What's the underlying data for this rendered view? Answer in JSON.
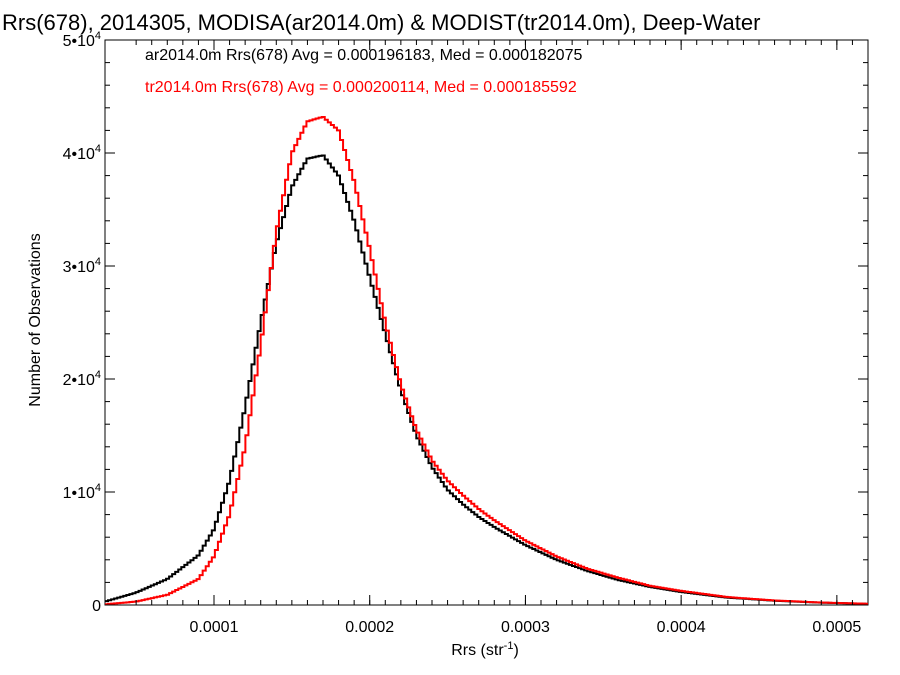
{
  "chart_data": {
    "type": "line",
    "title": "Rrs(678), 2014305, MODISA(ar2014.0m) & MODIST(tr2014.0m), Deep-Water",
    "xlabel": "Rrs (str",
    "xlabel_sup": "-1",
    "xlabel_end": ")",
    "ylabel": "Number of Observations",
    "xlim": [
      3e-05,
      0.00052
    ],
    "ylim": [
      0,
      50000
    ],
    "x_ticks": [
      {
        "value": 0.0001,
        "label": "0.0001"
      },
      {
        "value": 0.0002,
        "label": "0.0002"
      },
      {
        "value": 0.0003,
        "label": "0.0003"
      },
      {
        "value": 0.0004,
        "label": "0.0004"
      },
      {
        "value": 0.0005,
        "label": "0.0005"
      }
    ],
    "y_ticks": [
      {
        "value": 0,
        "label": "0",
        "sup": ""
      },
      {
        "value": 10000,
        "label": "1•10",
        "sup": "4"
      },
      {
        "value": 20000,
        "label": "2•10",
        "sup": "4"
      },
      {
        "value": 30000,
        "label": "3•10",
        "sup": "4"
      },
      {
        "value": 40000,
        "label": "4•10",
        "sup": "4"
      },
      {
        "value": 50000,
        "label": "5•10",
        "sup": "4"
      }
    ],
    "x": [
      3e-05,
      5e-05,
      7e-05,
      9e-05,
      0.0001,
      0.00011,
      0.00012,
      0.00013,
      0.00014,
      0.00015,
      0.00016,
      0.00017,
      0.00018,
      0.00019,
      0.0002,
      0.00021,
      0.00022,
      0.00023,
      0.00024,
      0.00025,
      0.00026,
      0.00027,
      0.00028,
      0.0003,
      0.00032,
      0.00034,
      0.00036,
      0.00038,
      0.0004,
      0.00043,
      0.00046,
      0.00049,
      0.00052
    ],
    "series": [
      {
        "name": "ar2014.0m",
        "color": "#000000",
        "values": [
          300,
          1100,
          2300,
          4400,
          6700,
          11000,
          17500,
          25000,
          32000,
          37000,
          39500,
          39800,
          38000,
          34000,
          29000,
          24000,
          19000,
          15000,
          12200,
          10200,
          8900,
          7800,
          6900,
          5300,
          4000,
          3000,
          2200,
          1600,
          1150,
          650,
          380,
          210,
          100
        ]
      },
      {
        "name": "tr2014.0m",
        "color": "#ff0000",
        "values": [
          60,
          300,
          900,
          2300,
          4300,
          8000,
          14000,
          23000,
          33000,
          40000,
          42800,
          43200,
          42000,
          37500,
          31500,
          25000,
          19500,
          15500,
          12800,
          11000,
          9700,
          8500,
          7500,
          5700,
          4300,
          3200,
          2400,
          1700,
          1250,
          700,
          400,
          220,
          110
        ]
      }
    ],
    "legend": [
      {
        "text": "ar2014.0m Rrs(678) Avg = 0.000196183, Med = 0.000182075",
        "color": "#000000"
      },
      {
        "text": "tr2014.0m Rrs(678) Avg = 0.000200114, Med = 0.000185592",
        "color": "#ff0000"
      }
    ],
    "legend_position": "top-left",
    "grid": false
  }
}
